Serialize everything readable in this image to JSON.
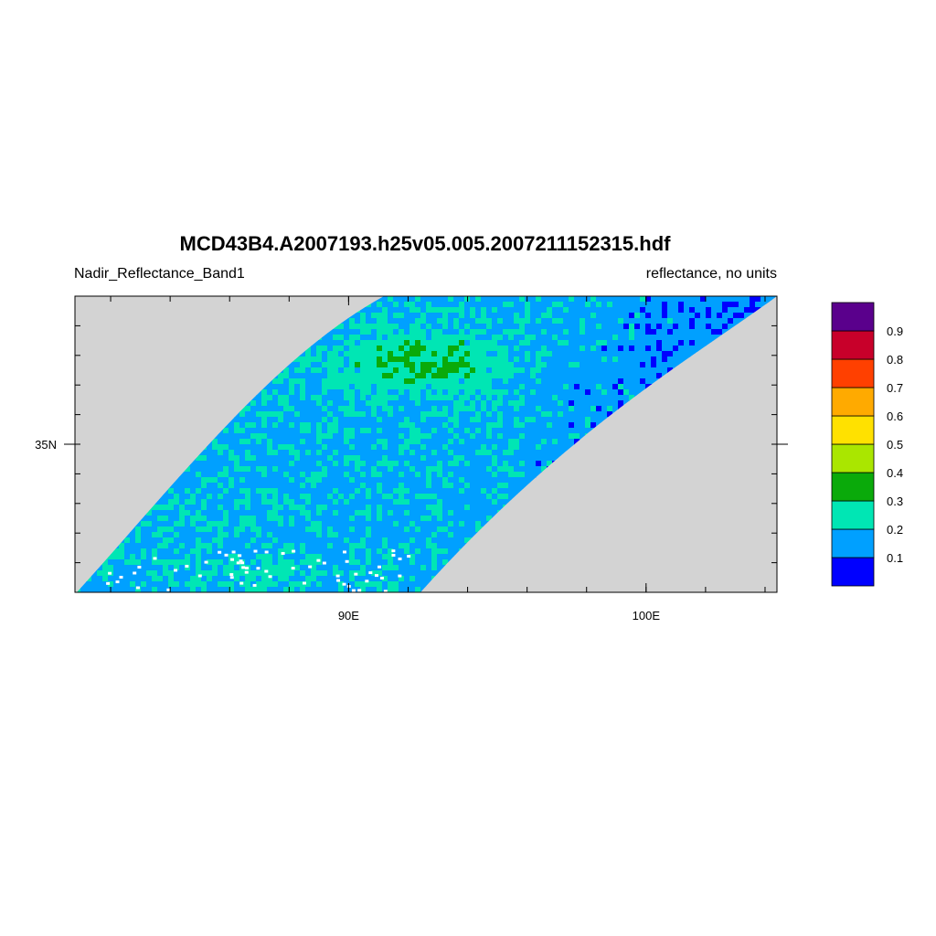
{
  "chart_data": {
    "type": "heatmap",
    "title": "MCD43B4.A2007193.h25v05.005.2007211152315.hdf",
    "left_subtitle": "Nadir_Reflectance_Band1",
    "right_subtitle": "reflectance, no units",
    "x_ticks": [
      {
        "value": 90,
        "label": "90E"
      },
      {
        "value": 100,
        "label": "100E"
      }
    ],
    "y_ticks": [
      {
        "value": 35,
        "label": "35N"
      }
    ],
    "xlim": [
      80.8,
      104.4
    ],
    "ylim": [
      30.0,
      40.0
    ],
    "colorbar": {
      "colors": [
        "#0000ff",
        "#00a0ff",
        "#00e6b4",
        "#0aaa0a",
        "#aae600",
        "#ffe100",
        "#ffaa00",
        "#ff4000",
        "#c8002a",
        "#5a008c"
      ],
      "labels": [
        "0.1",
        "0.2",
        "0.3",
        "0.4",
        "0.5",
        "0.6",
        "0.7",
        "0.8",
        "0.9"
      ]
    },
    "missing_color": "#d3d3d3",
    "grid": false
  }
}
